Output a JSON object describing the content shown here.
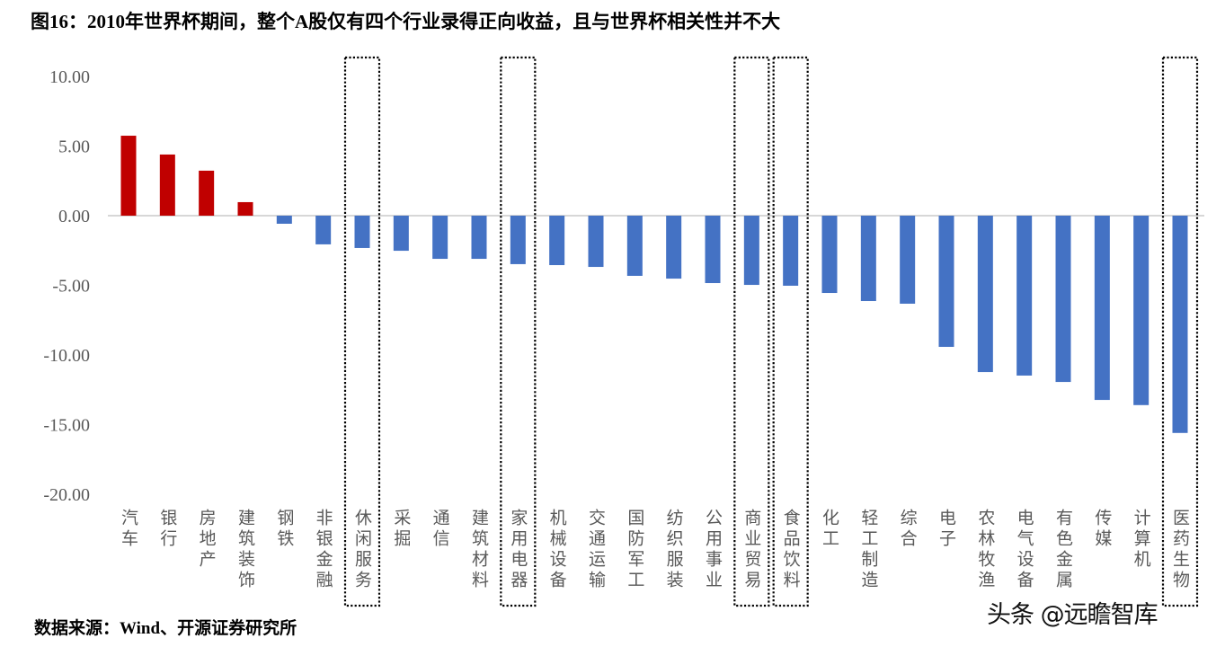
{
  "title": "图16：2010年世界杯期间，整个A股仅有四个行业录得正向收益，且与世界杯相关性并不大",
  "source": "数据来源：Wind、开源证券研究所",
  "watermark": "头条 @远瞻智库",
  "chart_data": {
    "type": "bar",
    "title": "",
    "xlabel": "",
    "ylabel": "",
    "ylim": [
      -20,
      10
    ],
    "yticks": [
      "10.00",
      "5.00",
      "0.00",
      "-5.00",
      "-10.00",
      "-15.00",
      "-20.00"
    ],
    "grid": false,
    "categories": [
      "汽车",
      "银行",
      "房地产",
      "建筑装饰",
      "钢铁",
      "非银金融",
      "休闲服务",
      "采掘",
      "通信",
      "建筑材料",
      "家用电器",
      "机械设备",
      "交通运输",
      "国防军工",
      "纺织服装",
      "公用事业",
      "商业贸易",
      "食品饮料",
      "化工",
      "轻工制造",
      "综合",
      "电子",
      "农林牧渔",
      "电气设备",
      "有色金属",
      "传媒",
      "计算机",
      "医药生物"
    ],
    "values": [
      5.74,
      4.39,
      3.23,
      0.97,
      -0.58,
      -2.06,
      -2.32,
      -2.52,
      -3.1,
      -3.1,
      -3.48,
      -3.55,
      -3.68,
      -4.32,
      -4.52,
      -4.84,
      -4.97,
      -5.03,
      -5.55,
      -6.13,
      -6.32,
      -9.42,
      -11.23,
      -11.48,
      -11.94,
      -13.23,
      -13.6,
      -15.6
    ],
    "highlighted": [
      "休闲服务",
      "家用电器",
      "商业贸易",
      "食品饮料",
      "医药生物"
    ],
    "colors": {
      "positive": "#C00000",
      "negative": "#4472C4",
      "highlight_box": "#000000"
    }
  }
}
